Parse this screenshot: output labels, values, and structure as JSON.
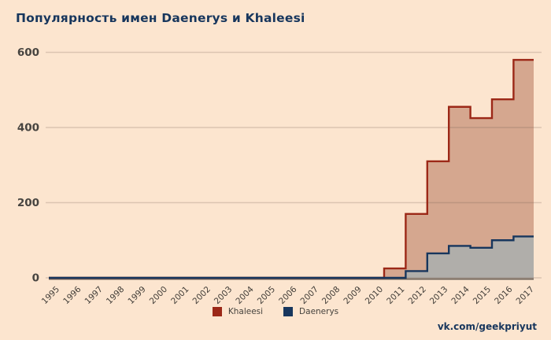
{
  "title": "Популярность имен Daenerys и Khaleesi",
  "watermark": "vk.com/geekpriyut",
  "colors": {
    "background": "#fce5cf",
    "title": "#17365d",
    "khaleesi_line": "#9c2817",
    "khaleesi_fill": "#d5a78f",
    "daenerys_line": "#17365d",
    "daenerys_fill": "#b0aeaa",
    "gridline": "rgba(107,86,73,0.22)",
    "axis_line": "#6e635a",
    "tick_label": "#474440"
  },
  "chart_data": {
    "type": "area",
    "subtype": "step",
    "title": "Популярность имен Daenerys и Khaleesi",
    "x": [
      1995,
      1996,
      1997,
      1998,
      1999,
      2000,
      2001,
      2002,
      2003,
      2004,
      2005,
      2006,
      2007,
      2008,
      2009,
      2010,
      2011,
      2012,
      2013,
      2014,
      2015,
      2016,
      2017
    ],
    "series": [
      {
        "name": "Khaleesi",
        "color": "#9c2817",
        "fill": "#d5a78f",
        "values": [
          0,
          0,
          0,
          0,
          0,
          0,
          0,
          0,
          0,
          0,
          0,
          0,
          0,
          0,
          0,
          25,
          170,
          310,
          455,
          425,
          475,
          580,
          580
        ]
      },
      {
        "name": "Daenerys",
        "color": "#17365d",
        "fill": "#b0aeaa",
        "values": [
          0,
          0,
          0,
          0,
          0,
          0,
          0,
          0,
          0,
          0,
          0,
          0,
          0,
          0,
          0,
          0,
          18,
          65,
          85,
          80,
          100,
          110,
          110
        ]
      }
    ],
    "xlabel": "",
    "ylabel": "",
    "ylim": [
      0,
      600
    ],
    "yticks": [
      0,
      200,
      400,
      600
    ],
    "grid": true,
    "legend_position": "bottom"
  }
}
